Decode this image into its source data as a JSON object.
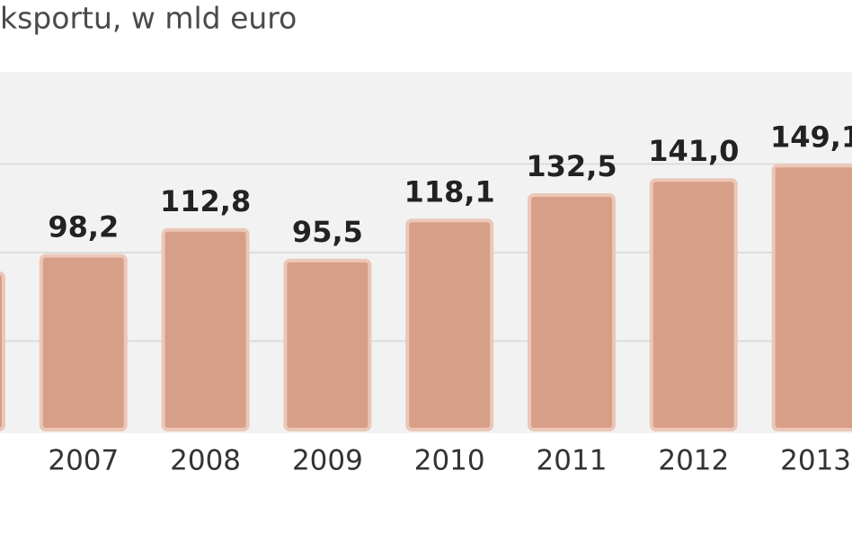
{
  "chart_data": {
    "type": "bar",
    "title": "ksportu, w mld euro",
    "categories": [
      null,
      "2007",
      "2008",
      "2009",
      "2010",
      "2011",
      "2012",
      "2013"
    ],
    "values": [
      88.5,
      98.2,
      112.8,
      95.5,
      118.1,
      132.5,
      141.0,
      149.1
    ],
    "value_labels": [
      null,
      "98,2",
      "112,8",
      "95,5",
      "118,1",
      "132,5",
      "141,0",
      "149,1"
    ],
    "color": "#d89f88",
    "ylim": [
      0,
      200
    ],
    "yticks": [
      50,
      100,
      150
    ],
    "grid": true
  }
}
